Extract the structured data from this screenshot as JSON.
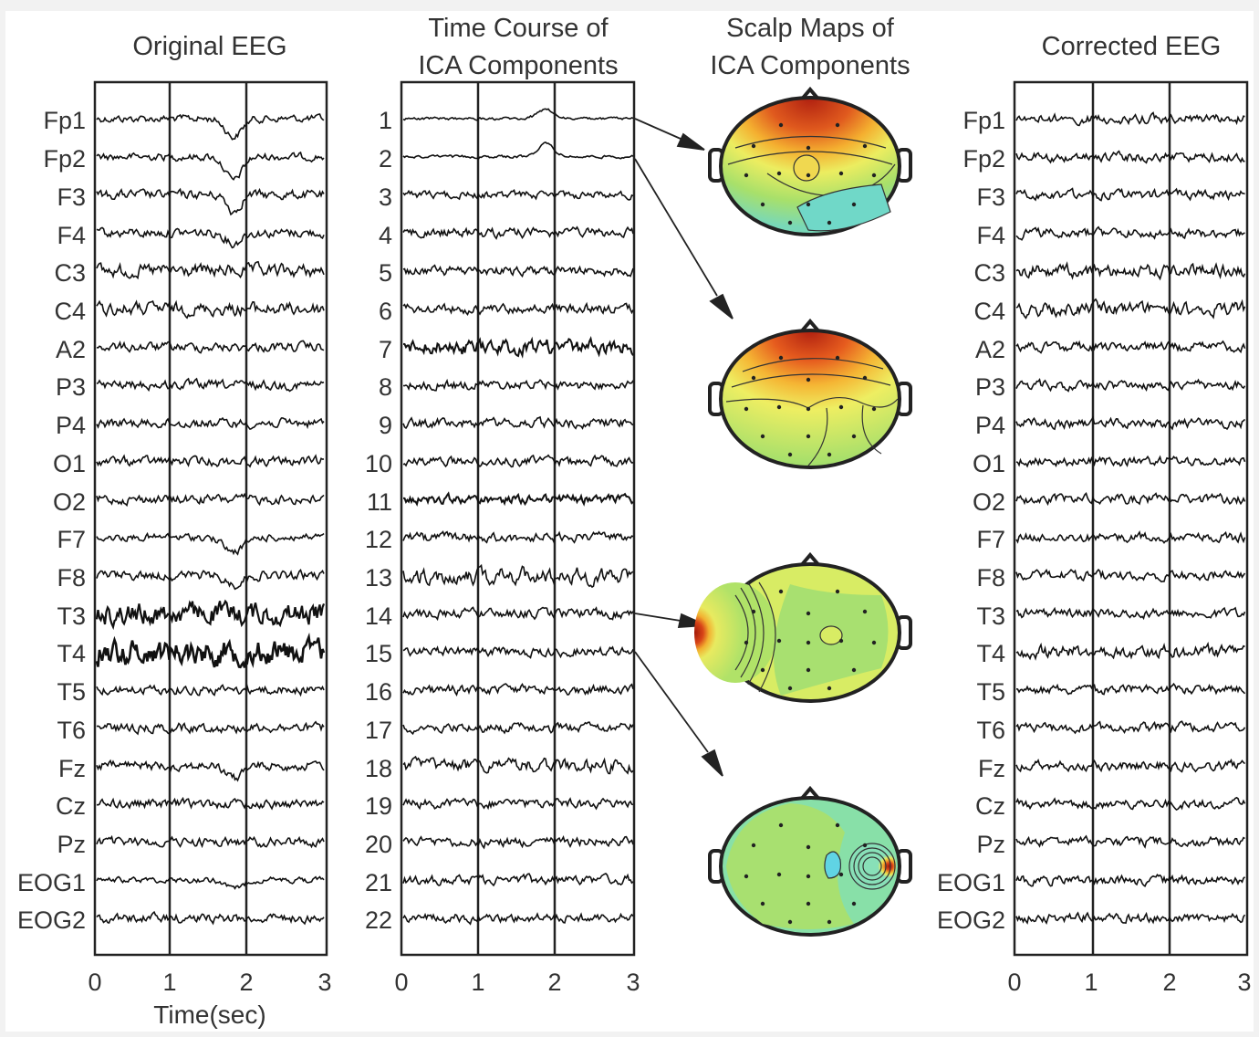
{
  "panels": {
    "original": {
      "title": "Original EEG",
      "channels": [
        "Fp1",
        "Fp2",
        "F3",
        "F4",
        "C3",
        "C4",
        "A2",
        "P3",
        "P4",
        "O1",
        "O2",
        "F7",
        "F8",
        "T3",
        "T4",
        "T5",
        "T6",
        "Fz",
        "Cz",
        "Pz",
        "EOG1",
        "EOG2"
      ]
    },
    "ica": {
      "title_line1": "Time Course of",
      "title_line2": "ICA Components",
      "components": [
        "1",
        "2",
        "3",
        "4",
        "5",
        "6",
        "7",
        "8",
        "9",
        "10",
        "11",
        "12",
        "13",
        "14",
        "15",
        "16",
        "17",
        "18",
        "19",
        "20",
        "21",
        "22"
      ]
    },
    "scalp": {
      "title_line1": "Scalp Maps of",
      "title_line2": "ICA Components",
      "maps": [
        {
          "component": "1",
          "hotspot": "frontal"
        },
        {
          "component": "2",
          "hotspot": "frontal"
        },
        {
          "component": "14",
          "hotspot": "left-temporal"
        },
        {
          "component": "15",
          "hotspot": "right-temporal"
        }
      ],
      "colors": {
        "hot": "#c0301e",
        "warm": "#f0a030",
        "mid": "#e8e860",
        "cool": "#60d8d0",
        "base": "#b8e060"
      }
    },
    "corrected": {
      "title": "Corrected EEG",
      "channels": [
        "Fp1",
        "Fp2",
        "F3",
        "F4",
        "C3",
        "C4",
        "A2",
        "P3",
        "P4",
        "O1",
        "O2",
        "F7",
        "F8",
        "T3",
        "T4",
        "T5",
        "T6",
        "Fz",
        "Cz",
        "Pz",
        "EOG1",
        "EOG2"
      ]
    }
  },
  "time_axis": {
    "ticks": [
      "0",
      "1",
      "2",
      "3"
    ],
    "label": "Time(sec)"
  }
}
